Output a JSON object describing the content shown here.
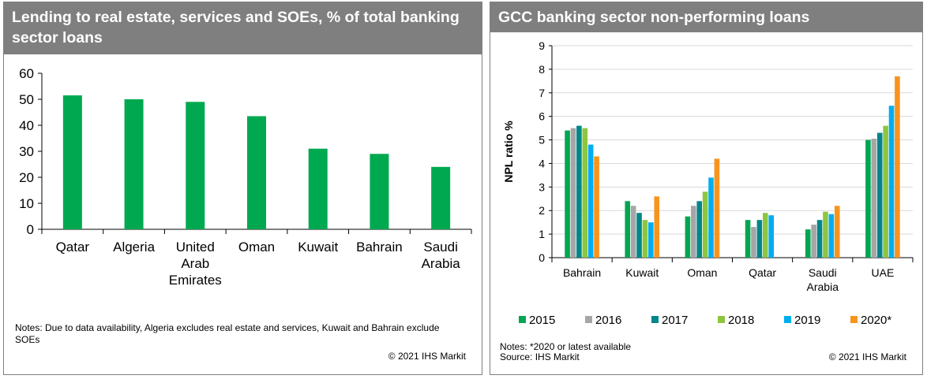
{
  "left_panel": {
    "title": "Lending to real estate, services and SOEs, % of total banking sector loans",
    "notes": "Notes: Due to data availability, Algeria excludes real estate and services, Kuwait and Bahrain exclude SOEs",
    "copyright": "© 2021 IHS Markit"
  },
  "right_panel": {
    "title": "GCC banking sector non-performing loans",
    "notes": "Notes: *2020 or latest available",
    "source": "Source: IHS Markit",
    "copyright": "© 2021 IHS Markit"
  },
  "chart_data": [
    {
      "type": "bar",
      "title": "Lending to real estate, services and SOEs, % of total banking sector loans",
      "categories": [
        [
          "Qatar"
        ],
        [
          "Algeria"
        ],
        [
          "United",
          "Arab",
          "Emirates"
        ],
        [
          "Oman"
        ],
        [
          "Kuwait"
        ],
        [
          "Bahrain"
        ],
        [
          "Saudi",
          "Arabia"
        ]
      ],
      "values": [
        51.5,
        50,
        49,
        43.5,
        31,
        29,
        24
      ],
      "ylim": [
        0,
        60
      ],
      "yticks": [
        0,
        10,
        20,
        30,
        40,
        50,
        60
      ],
      "grid": false,
      "color": "#00a94f"
    },
    {
      "type": "bar",
      "title": "GCC banking sector non-performing loans",
      "ylabel": "NPL ratio %",
      "categories": [
        [
          "Bahrain"
        ],
        [
          "Kuwait"
        ],
        [
          "Oman"
        ],
        [
          "Qatar"
        ],
        [
          "Saudi",
          "Arabia"
        ],
        [
          "UAE"
        ]
      ],
      "series": [
        {
          "name": "2015",
          "color": "#00a651",
          "values": [
            5.4,
            2.4,
            1.75,
            1.6,
            1.2,
            5.0
          ]
        },
        {
          "name": "2016",
          "color": "#a6a6a6",
          "values": [
            5.5,
            2.2,
            2.2,
            1.3,
            1.4,
            5.05
          ]
        },
        {
          "name": "2017",
          "color": "#00868b",
          "values": [
            5.6,
            1.9,
            2.4,
            1.6,
            1.6,
            5.3
          ]
        },
        {
          "name": "2018",
          "color": "#8dc63f",
          "values": [
            5.5,
            1.6,
            2.8,
            1.9,
            1.95,
            5.6
          ]
        },
        {
          "name": "2019",
          "color": "#00aeef",
          "values": [
            4.8,
            1.5,
            3.4,
            1.8,
            1.85,
            6.45
          ]
        },
        {
          "name": "2020*",
          "color": "#f7941d",
          "values": [
            4.3,
            2.6,
            4.2,
            null,
            2.2,
            7.7
          ]
        }
      ],
      "ylim": [
        0,
        9
      ],
      "yticks": [
        0,
        1,
        2,
        3,
        4,
        5,
        6,
        7,
        8,
        9
      ],
      "grid": true,
      "legend": "bottom"
    }
  ]
}
